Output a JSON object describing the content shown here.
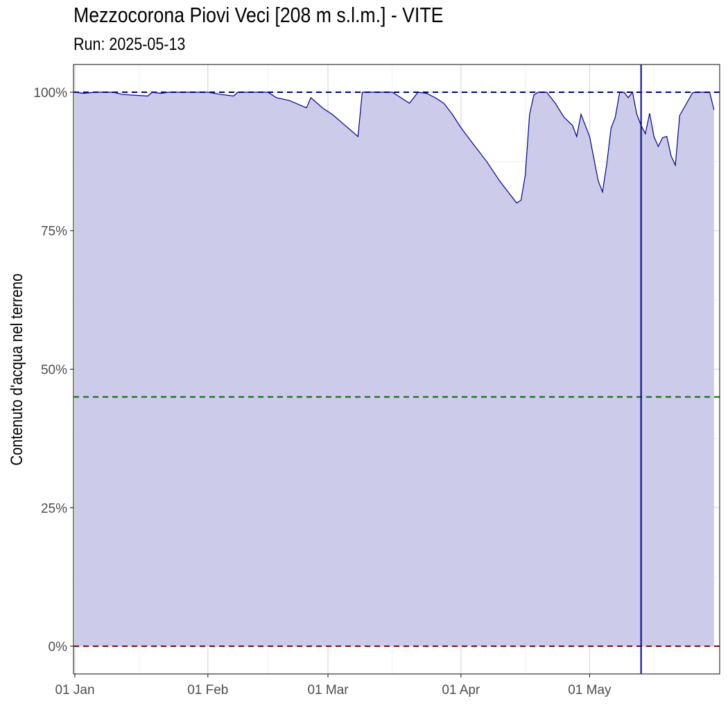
{
  "chart_data": {
    "type": "area",
    "title": "Mezzocorona Piovi Veci [208 m s.l.m.] - VITE",
    "subtitle": "Run: 2025-05-13",
    "xlabel": "",
    "ylabel": "Contenuto d'acqua nel terreno",
    "x_range": [
      "2025-01-01",
      "2025-05-31"
    ],
    "x_ticks": [
      {
        "date": "2025-01-01",
        "label": "01 Jan"
      },
      {
        "date": "2025-02-01",
        "label": "01 Feb"
      },
      {
        "date": "2025-03-01",
        "label": "01 Mar"
      },
      {
        "date": "2025-04-01",
        "label": "01 Apr"
      },
      {
        "date": "2025-05-01",
        "label": "01 May"
      }
    ],
    "ylim": [
      -0.05,
      1.05
    ],
    "y_ticks": [
      {
        "value": 0,
        "label": "0%"
      },
      {
        "value": 0.25,
        "label": "25%"
      },
      {
        "value": 0.5,
        "label": "50%"
      },
      {
        "value": 0.75,
        "label": "75%"
      },
      {
        "value": 1,
        "label": "100%"
      }
    ],
    "grid": true,
    "series": [
      {
        "color": "#00008b",
        "fill": "#ccccea",
        "points": [
          [
            "2025-01-01",
            1.0
          ],
          [
            "2025-01-03",
            0.998
          ],
          [
            "2025-01-06",
            1.0
          ],
          [
            "2025-01-10",
            1.0
          ],
          [
            "2025-01-12",
            0.996
          ],
          [
            "2025-01-18",
            0.993
          ],
          [
            "2025-01-19",
            1.0
          ],
          [
            "2025-01-21",
            0.998
          ],
          [
            "2025-01-23",
            1.0
          ],
          [
            "2025-01-25",
            1.0
          ],
          [
            "2025-02-01",
            1.0
          ],
          [
            "2025-02-04",
            0.996
          ],
          [
            "2025-02-07",
            0.993
          ],
          [
            "2025-02-08",
            1.0
          ],
          [
            "2025-02-15",
            1.0
          ],
          [
            "2025-02-17",
            0.99
          ],
          [
            "2025-02-20",
            0.985
          ],
          [
            "2025-02-23",
            0.975
          ],
          [
            "2025-02-24",
            0.972
          ],
          [
            "2025-02-25",
            0.99
          ],
          [
            "2025-02-28",
            0.97
          ],
          [
            "2025-03-02",
            0.96
          ],
          [
            "2025-03-05",
            0.94
          ],
          [
            "2025-03-08",
            0.92
          ],
          [
            "2025-03-09",
            1.0
          ],
          [
            "2025-03-16",
            1.0
          ],
          [
            "2025-03-18",
            0.99
          ],
          [
            "2025-03-20",
            0.98
          ],
          [
            "2025-03-22",
            1.0
          ],
          [
            "2025-03-24",
            0.998
          ],
          [
            "2025-03-26",
            0.99
          ],
          [
            "2025-03-28",
            0.98
          ],
          [
            "2025-03-30",
            0.96
          ],
          [
            "2025-04-01",
            0.936
          ],
          [
            "2025-04-04",
            0.905
          ],
          [
            "2025-04-07",
            0.875
          ],
          [
            "2025-04-10",
            0.84
          ],
          [
            "2025-04-13",
            0.81
          ],
          [
            "2025-04-14",
            0.8
          ],
          [
            "2025-04-15",
            0.805
          ],
          [
            "2025-04-16",
            0.85
          ],
          [
            "2025-04-17",
            0.96
          ],
          [
            "2025-04-18",
            0.995
          ],
          [
            "2025-04-19",
            1.0
          ],
          [
            "2025-04-21",
            1.0
          ],
          [
            "2025-04-22",
            0.99
          ],
          [
            "2025-04-23",
            0.98
          ],
          [
            "2025-04-25",
            0.955
          ],
          [
            "2025-04-27",
            0.94
          ],
          [
            "2025-04-28",
            0.92
          ],
          [
            "2025-04-29",
            0.96
          ],
          [
            "2025-05-01",
            0.92
          ],
          [
            "2025-05-02",
            0.88
          ],
          [
            "2025-05-03",
            0.84
          ],
          [
            "2025-05-04",
            0.82
          ],
          [
            "2025-05-05",
            0.87
          ],
          [
            "2025-05-06",
            0.935
          ],
          [
            "2025-05-07",
            0.955
          ],
          [
            "2025-05-08",
            1.0
          ],
          [
            "2025-05-09",
            1.0
          ],
          [
            "2025-05-10",
            0.99
          ],
          [
            "2025-05-11",
            1.0
          ],
          [
            "2025-05-12",
            0.96
          ],
          [
            "2025-05-13",
            0.94
          ],
          [
            "2025-05-14",
            0.925
          ],
          [
            "2025-05-15",
            0.962
          ],
          [
            "2025-05-16",
            0.92
          ],
          [
            "2025-05-17",
            0.902
          ],
          [
            "2025-05-18",
            0.918
          ],
          [
            "2025-05-19",
            0.92
          ],
          [
            "2025-05-20",
            0.885
          ],
          [
            "2025-05-21",
            0.868
          ],
          [
            "2025-05-22",
            0.958
          ],
          [
            "2025-05-25",
            0.999
          ],
          [
            "2025-05-26",
            1.0
          ],
          [
            "2025-05-29",
            1.0
          ],
          [
            "2025-05-30",
            0.968
          ]
        ]
      }
    ],
    "reference_lines": [
      {
        "type": "horizontal",
        "value": 1.0,
        "color": "#00008b",
        "style": "dashed"
      },
      {
        "type": "horizontal",
        "value": 0.45,
        "color": "#006400",
        "style": "dashed"
      },
      {
        "type": "horizontal",
        "value": 0.0,
        "color": "#8b0000",
        "style": "dashed"
      },
      {
        "type": "vertical",
        "date": "2025-05-13",
        "color": "#00008b",
        "style": "solid"
      }
    ]
  }
}
